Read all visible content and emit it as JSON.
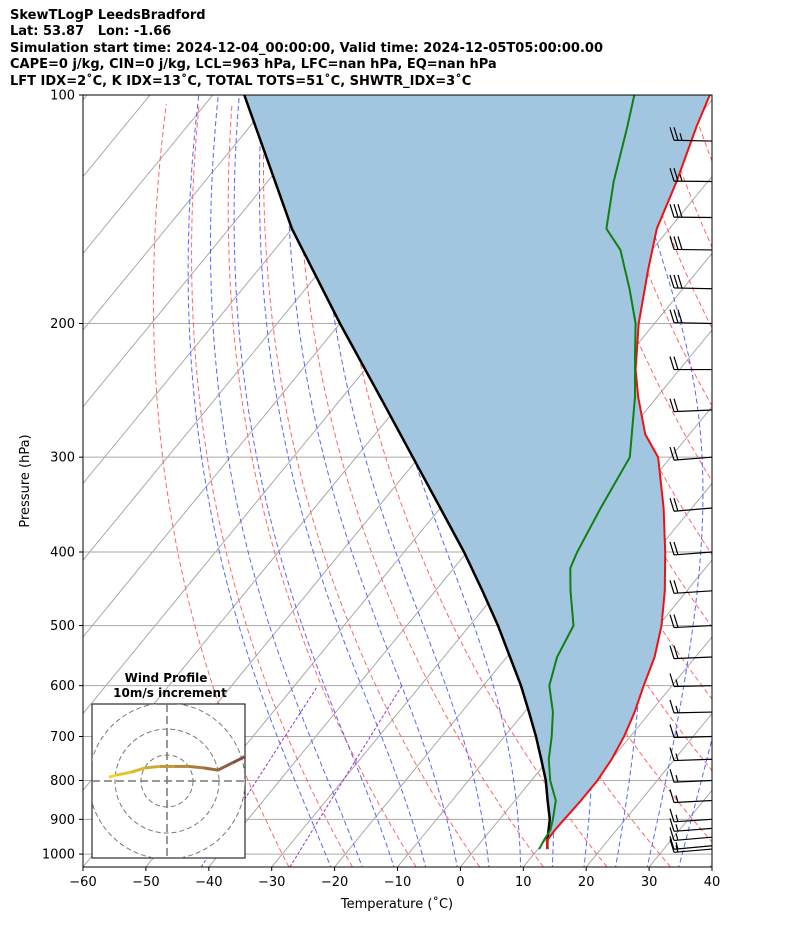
{
  "header": {
    "line1": "SkewTLogP LeedsBradford",
    "line2": "Lat: 53.87   Lon: -1.66",
    "line3": "Simulation start time: 2024-12-04_00:00:00, Valid time: 2024-12-05T05:00:00.00",
    "line4": "CAPE=0 j/kg, CIN=0 j/kg, LCL=963 hPa, LFC=nan hPa, EQ=nan hPa",
    "line5": "LFT IDX=2˚C, K IDX=13˚C, TOTAL TOTS=51˚C, SHWTR_IDX=3˚C"
  },
  "colors": {
    "temperature": "#ee1111",
    "dewpoint": "#108010",
    "parcel": "#000000",
    "cape_fill": "#a3c6e0",
    "isotherm": "#aaaaaa",
    "dry_adiabat": "#ff6666",
    "moist_adiabat": "#5566ff",
    "mixing_ratio": "#9933cc"
  },
  "chart_data": {
    "type": "line",
    "title": "SkewTLogP LeedsBradford",
    "xlabel": "Temperature (˚C)",
    "ylabel": "Pressure (hPa)",
    "xlim": [
      -60,
      40
    ],
    "ylim": [
      1040,
      100
    ],
    "x_ticks": [
      "−60",
      "−50",
      "−40",
      "−30",
      "−20",
      "−10",
      "0",
      "10",
      "20",
      "30",
      "40"
    ],
    "y_ticks": [
      "1000",
      "900",
      "800",
      "700",
      "600",
      "500",
      "400",
      "300",
      "200",
      "100"
    ],
    "series": [
      {
        "key": "temperature",
        "unit": "˚C",
        "points": [
          [
            985,
            11.5
          ],
          [
            960,
            10.3
          ],
          [
            930,
            10.2
          ],
          [
            900,
            10.3
          ],
          [
            850,
            10.5
          ],
          [
            800,
            10.5
          ],
          [
            750,
            10.0
          ],
          [
            700,
            9.0
          ],
          [
            650,
            7.5
          ],
          [
            600,
            5.5
          ],
          [
            550,
            3.5
          ],
          [
            500,
            0.5
          ],
          [
            450,
            -3.5
          ],
          [
            400,
            -8.5
          ],
          [
            350,
            -14.5
          ],
          [
            300,
            -22
          ],
          [
            280,
            -27
          ],
          [
            250,
            -33
          ],
          [
            230,
            -37
          ],
          [
            200,
            -42.5
          ],
          [
            170,
            -48
          ],
          [
            150,
            -52
          ],
          [
            130,
            -55
          ],
          [
            110,
            -59
          ],
          [
            100,
            -61
          ]
        ]
      },
      {
        "key": "dewpoint",
        "unit": "˚C",
        "points": [
          [
            985,
            10.2
          ],
          [
            960,
            9.8
          ],
          [
            930,
            9.5
          ],
          [
            900,
            8.5
          ],
          [
            850,
            6.5
          ],
          [
            800,
            3.0
          ],
          [
            750,
            0.0
          ],
          [
            700,
            -2.5
          ],
          [
            650,
            -5.5
          ],
          [
            600,
            -9.5
          ],
          [
            550,
            -12
          ],
          [
            500,
            -13.5
          ],
          [
            450,
            -18.5
          ],
          [
            420,
            -21.5
          ],
          [
            400,
            -22.5
          ],
          [
            350,
            -24.5
          ],
          [
            300,
            -26.5
          ],
          [
            250,
            -33.5
          ],
          [
            220,
            -39
          ],
          [
            200,
            -43
          ],
          [
            180,
            -48.5
          ],
          [
            160,
            -55
          ],
          [
            150,
            -60
          ],
          [
            130,
            -65
          ],
          [
            110,
            -70
          ],
          [
            100,
            -73
          ]
        ]
      },
      {
        "key": "parcel",
        "unit": "˚C",
        "points": [
          [
            985,
            11.5
          ],
          [
            963,
            10.5
          ],
          [
            900,
            8.0
          ],
          [
            850,
            5.2
          ],
          [
            800,
            2.3
          ],
          [
            750,
            -1.2
          ],
          [
            700,
            -5.0
          ],
          [
            650,
            -9.3
          ],
          [
            600,
            -14.0
          ],
          [
            550,
            -19.5
          ],
          [
            500,
            -25.5
          ],
          [
            450,
            -32.5
          ],
          [
            400,
            -40.5
          ],
          [
            350,
            -50.0
          ],
          [
            300,
            -61.0
          ],
          [
            250,
            -74.0
          ],
          [
            200,
            -90.0
          ],
          [
            150,
            -110.0
          ],
          [
            100,
            -135.0
          ]
        ]
      }
    ],
    "barbs": {
      "unit": "kt",
      "levels": [
        {
          "p": 985,
          "speed": 15,
          "dir": 250
        },
        {
          "p": 975,
          "speed": 15,
          "dir": 248
        },
        {
          "p": 950,
          "speed": 15,
          "dir": 250
        },
        {
          "p": 925,
          "speed": 15,
          "dir": 252
        },
        {
          "p": 900,
          "speed": 15,
          "dir": 255
        },
        {
          "p": 850,
          "speed": 15,
          "dir": 258
        },
        {
          "p": 800,
          "speed": 15,
          "dir": 260
        },
        {
          "p": 750,
          "speed": 15,
          "dir": 262
        },
        {
          "p": 700,
          "speed": 15,
          "dir": 264
        },
        {
          "p": 650,
          "speed": 15,
          "dir": 265
        },
        {
          "p": 600,
          "speed": 15,
          "dir": 265
        },
        {
          "p": 550,
          "speed": 20,
          "dir": 260
        },
        {
          "p": 500,
          "speed": 20,
          "dir": 258
        },
        {
          "p": 450,
          "speed": 20,
          "dir": 255
        },
        {
          "p": 400,
          "speed": 20,
          "dir": 252
        },
        {
          "p": 350,
          "speed": 20,
          "dir": 250
        },
        {
          "p": 300,
          "speed": 20,
          "dir": 252
        },
        {
          "p": 260,
          "speed": 20,
          "dir": 260
        },
        {
          "p": 230,
          "speed": 20,
          "dir": 270
        },
        {
          "p": 200,
          "speed": 30,
          "dir": 275
        },
        {
          "p": 180,
          "speed": 30,
          "dir": 275
        },
        {
          "p": 160,
          "speed": 30,
          "dir": 273
        },
        {
          "p": 145,
          "speed": 30,
          "dir": 272
        },
        {
          "p": 130,
          "speed": 25,
          "dir": 272
        },
        {
          "p": 115,
          "speed": 25,
          "dir": 275
        }
      ]
    },
    "inset": {
      "title": "Wind Profile",
      "subtitle": "10m/s increment",
      "rings": [
        10,
        20,
        30
      ],
      "hodograph": [
        [
          14,
          -1.5
        ],
        [
          14.5,
          -0.5
        ],
        [
          14,
          0.5
        ],
        [
          13,
          1.5
        ],
        [
          12,
          2.5
        ],
        [
          11,
          3.5
        ],
        [
          9,
          2.5
        ],
        [
          7,
          1.5
        ],
        [
          5,
          1.8
        ],
        [
          3,
          2.0
        ],
        [
          1,
          2.0
        ],
        [
          -1,
          2.0
        ],
        [
          -3,
          1.8
        ],
        [
          -5,
          1.2
        ],
        [
          -7,
          0.8
        ],
        [
          -8,
          0.5
        ]
      ]
    }
  }
}
